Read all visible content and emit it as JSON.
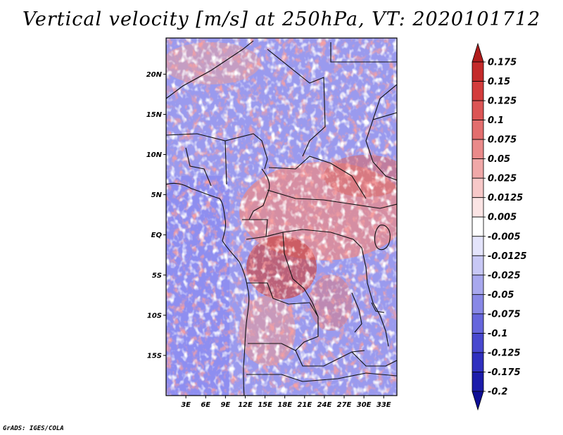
{
  "title": "Vertical velocity [m/s] at 250hPa, VT: 2020101712",
  "footer": "GrADS: IGES/COLA",
  "map": {
    "lat_labels": [
      "20N",
      "15N",
      "10N",
      "5N",
      "EQ",
      "5S",
      "10S",
      "15S"
    ],
    "lat_values": [
      20,
      15,
      10,
      5,
      0,
      -5,
      -10,
      -15
    ],
    "lon_labels": [
      "3E",
      "6E",
      "9E",
      "12E",
      "15E",
      "18E",
      "21E",
      "24E",
      "27E",
      "30E",
      "33E"
    ],
    "lon_values": [
      3,
      6,
      9,
      12,
      15,
      18,
      21,
      24,
      27,
      30,
      33
    ],
    "lat_range": [
      -20,
      24.5
    ],
    "lon_range": [
      0,
      35
    ]
  },
  "colorbar": {
    "labels": [
      "0.175",
      "0.15",
      "0.125",
      "0.1",
      "0.075",
      "0.05",
      "0.025",
      "0.0125",
      "0.005",
      "-0.005",
      "-0.0125",
      "-0.025",
      "-0.05",
      "-0.075",
      "-0.1",
      "-0.125",
      "-0.175",
      "-0.2"
    ],
    "colors": [
      "#b01c1c",
      "#c42a2a",
      "#d33c3c",
      "#dc5555",
      "#e36e6e",
      "#ea8a8a",
      "#f0a8a8",
      "#f7c8c8",
      "#fbe4e4",
      "#ffffff",
      "#e4e4fb",
      "#c8c8f5",
      "#a8a8ee",
      "#8888e6",
      "#6666dc",
      "#4848cf",
      "#3030bf",
      "#1c1caa",
      "#0e0e96"
    ]
  }
}
